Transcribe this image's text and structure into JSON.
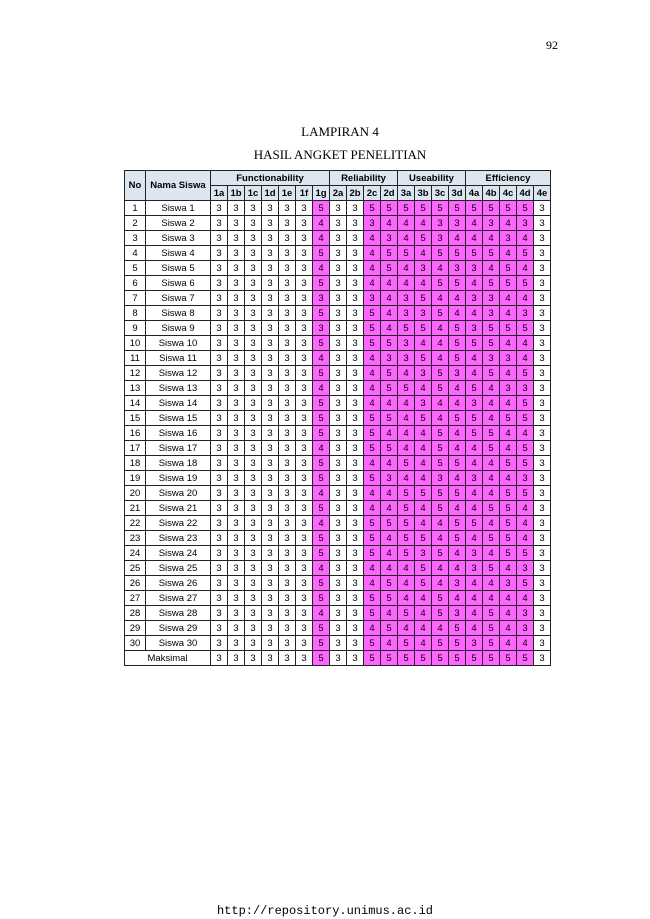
{
  "page_number": "92",
  "title": "LAMPIRAN 4",
  "subtitle": "HASIL ANGKET PENELITIAN",
  "table": {
    "no_header": "No",
    "name_header": "Nama Siswa",
    "groups": [
      {
        "label": "Functionability",
        "columns": [
          "1a",
          "1b",
          "1c",
          "1d",
          "1e",
          "1f",
          "1g"
        ]
      },
      {
        "label": "Reliability",
        "columns": [
          "2a",
          "2b",
          "2c",
          "2d"
        ]
      },
      {
        "label": "Useability",
        "columns": [
          "3a",
          "3b",
          "3c",
          "3d"
        ]
      },
      {
        "label": "Efficiency",
        "columns": [
          "4a",
          "4b",
          "4c",
          "4d",
          "4e"
        ]
      }
    ],
    "rows": [
      {
        "no": 1,
        "name": "Siswa 1",
        "scores": [
          3,
          3,
          3,
          3,
          3,
          3,
          5,
          3,
          3,
          5,
          5,
          5,
          5,
          5,
          5,
          5,
          5,
          5,
          5,
          3
        ]
      },
      {
        "no": 2,
        "name": "Siswa 2",
        "scores": [
          3,
          3,
          3,
          3,
          3,
          3,
          4,
          3,
          3,
          3,
          4,
          4,
          4,
          3,
          3,
          4,
          3,
          4,
          3,
          3
        ]
      },
      {
        "no": 3,
        "name": "Siswa 3",
        "scores": [
          3,
          3,
          3,
          3,
          3,
          3,
          4,
          3,
          3,
          4,
          3,
          4,
          5,
          3,
          4,
          4,
          4,
          3,
          4,
          3
        ]
      },
      {
        "no": 4,
        "name": "Siswa 4",
        "scores": [
          3,
          3,
          3,
          3,
          3,
          3,
          5,
          3,
          3,
          4,
          5,
          5,
          4,
          5,
          5,
          5,
          5,
          4,
          5,
          3
        ]
      },
      {
        "no": 5,
        "name": "Siswa 5",
        "scores": [
          3,
          3,
          3,
          3,
          3,
          3,
          4,
          3,
          3,
          4,
          5,
          4,
          3,
          4,
          3,
          3,
          4,
          5,
          4,
          3
        ]
      },
      {
        "no": 6,
        "name": "Siswa 6",
        "scores": [
          3,
          3,
          3,
          3,
          3,
          3,
          5,
          3,
          3,
          4,
          4,
          4,
          4,
          5,
          5,
          4,
          5,
          5,
          5,
          3
        ]
      },
      {
        "no": 7,
        "name": "Siswa 7",
        "scores": [
          3,
          3,
          3,
          3,
          3,
          3,
          3,
          3,
          3,
          3,
          4,
          3,
          5,
          4,
          4,
          3,
          3,
          4,
          4,
          3
        ]
      },
      {
        "no": 8,
        "name": "Siswa 8",
        "scores": [
          3,
          3,
          3,
          3,
          3,
          3,
          5,
          3,
          3,
          5,
          4,
          3,
          3,
          5,
          4,
          4,
          3,
          4,
          3,
          3
        ]
      },
      {
        "no": 9,
        "name": "Siswa 9",
        "scores": [
          3,
          3,
          3,
          3,
          3,
          3,
          3,
          3,
          3,
          5,
          4,
          5,
          5,
          4,
          5,
          3,
          5,
          5,
          5,
          3
        ]
      },
      {
        "no": 10,
        "name": "Siswa 10",
        "scores": [
          3,
          3,
          3,
          3,
          3,
          3,
          5,
          3,
          3,
          5,
          5,
          3,
          4,
          4,
          5,
          5,
          5,
          4,
          4,
          3
        ]
      },
      {
        "no": 11,
        "name": "Siswa 11",
        "scores": [
          3,
          3,
          3,
          3,
          3,
          3,
          4,
          3,
          3,
          4,
          3,
          3,
          5,
          4,
          5,
          4,
          3,
          3,
          4,
          3
        ]
      },
      {
        "no": 12,
        "name": "Siswa 12",
        "scores": [
          3,
          3,
          3,
          3,
          3,
          3,
          5,
          3,
          3,
          4,
          5,
          4,
          3,
          5,
          3,
          4,
          5,
          4,
          5,
          3
        ]
      },
      {
        "no": 13,
        "name": "Siswa 13",
        "scores": [
          3,
          3,
          3,
          3,
          3,
          3,
          4,
          3,
          3,
          4,
          5,
          5,
          4,
          5,
          4,
          5,
          4,
          3,
          3,
          3
        ]
      },
      {
        "no": 14,
        "name": "Siswa 14",
        "scores": [
          3,
          3,
          3,
          3,
          3,
          3,
          5,
          3,
          3,
          4,
          4,
          4,
          3,
          4,
          4,
          3,
          4,
          4,
          5,
          3
        ]
      },
      {
        "no": 15,
        "name": "Siswa 15",
        "scores": [
          3,
          3,
          3,
          3,
          3,
          3,
          5,
          3,
          3,
          5,
          5,
          4,
          5,
          4,
          5,
          5,
          4,
          5,
          5,
          3
        ]
      },
      {
        "no": 16,
        "name": "Siswa 16",
        "scores": [
          3,
          3,
          3,
          3,
          3,
          3,
          5,
          3,
          3,
          5,
          4,
          4,
          4,
          5,
          4,
          5,
          5,
          4,
          4,
          3
        ]
      },
      {
        "no": 17,
        "name": "Siswa 17",
        "scores": [
          3,
          3,
          3,
          3,
          3,
          3,
          4,
          3,
          3,
          5,
          5,
          4,
          4,
          5,
          4,
          4,
          5,
          4,
          5,
          3
        ]
      },
      {
        "no": 18,
        "name": "Siswa 18",
        "scores": [
          3,
          3,
          3,
          3,
          3,
          3,
          5,
          3,
          3,
          4,
          4,
          5,
          4,
          5,
          5,
          4,
          4,
          5,
          5,
          3
        ]
      },
      {
        "no": 19,
        "name": "Siswa 19",
        "scores": [
          3,
          3,
          3,
          3,
          3,
          3,
          5,
          3,
          3,
          5,
          3,
          4,
          4,
          3,
          4,
          3,
          4,
          4,
          3,
          3
        ]
      },
      {
        "no": 20,
        "name": "Siswa 20",
        "scores": [
          3,
          3,
          3,
          3,
          3,
          3,
          4,
          3,
          3,
          4,
          4,
          5,
          5,
          5,
          5,
          4,
          4,
          5,
          5,
          3
        ]
      },
      {
        "no": 21,
        "name": "Siswa 21",
        "scores": [
          3,
          3,
          3,
          3,
          3,
          3,
          5,
          3,
          3,
          4,
          4,
          5,
          4,
          5,
          4,
          4,
          5,
          5,
          4,
          3
        ]
      },
      {
        "no": 22,
        "name": "Siswa 22",
        "scores": [
          3,
          3,
          3,
          3,
          3,
          3,
          4,
          3,
          3,
          5,
          5,
          5,
          4,
          4,
          5,
          5,
          4,
          5,
          4,
          3
        ]
      },
      {
        "no": 23,
        "name": "Siswa 23",
        "scores": [
          3,
          3,
          3,
          3,
          3,
          3,
          5,
          3,
          3,
          5,
          4,
          5,
          5,
          4,
          5,
          4,
          5,
          5,
          4,
          3
        ]
      },
      {
        "no": 24,
        "name": "Siswa 24",
        "scores": [
          3,
          3,
          3,
          3,
          3,
          3,
          5,
          3,
          3,
          5,
          4,
          5,
          3,
          5,
          4,
          3,
          4,
          5,
          5,
          3
        ]
      },
      {
        "no": 25,
        "name": "Siswa 25",
        "scores": [
          3,
          3,
          3,
          3,
          3,
          3,
          4,
          3,
          3,
          4,
          4,
          4,
          5,
          4,
          4,
          3,
          5,
          4,
          3,
          3
        ]
      },
      {
        "no": 26,
        "name": "Siswa 26",
        "scores": [
          3,
          3,
          3,
          3,
          3,
          3,
          5,
          3,
          3,
          4,
          5,
          4,
          5,
          4,
          3,
          4,
          4,
          3,
          5,
          3
        ]
      },
      {
        "no": 27,
        "name": "Siswa 27",
        "scores": [
          3,
          3,
          3,
          3,
          3,
          3,
          5,
          3,
          3,
          5,
          5,
          4,
          4,
          5,
          4,
          4,
          4,
          4,
          4,
          3
        ]
      },
      {
        "no": 28,
        "name": "Siswa 28",
        "scores": [
          3,
          3,
          3,
          3,
          3,
          3,
          4,
          3,
          3,
          5,
          4,
          5,
          4,
          5,
          3,
          4,
          5,
          4,
          3,
          3
        ]
      },
      {
        "no": 29,
        "name": "Siswa 29",
        "scores": [
          3,
          3,
          3,
          3,
          3,
          3,
          5,
          3,
          3,
          4,
          5,
          4,
          4,
          4,
          5,
          4,
          5,
          4,
          3,
          3
        ]
      },
      {
        "no": 30,
        "name": "Siswa 30",
        "scores": [
          3,
          3,
          3,
          3,
          3,
          3,
          5,
          3,
          3,
          5,
          4,
          5,
          4,
          5,
          5,
          3,
          5,
          4,
          4,
          3
        ]
      }
    ],
    "max_row": {
      "label": "Maksimal",
      "scores": [
        3,
        3,
        3,
        3,
        3,
        3,
        5,
        3,
        3,
        5,
        5,
        5,
        5,
        5,
        5,
        5,
        5,
        5,
        5,
        3
      ]
    }
  },
  "footer": "http://repository.unimus.ac.id"
}
